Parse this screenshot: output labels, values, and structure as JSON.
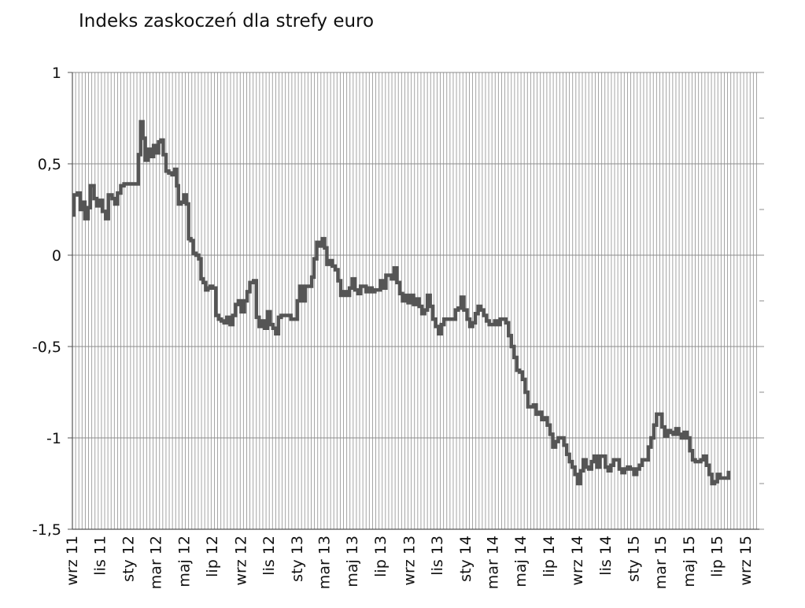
{
  "chart_data": {
    "type": "line",
    "title": "Indeks zaskoczeń dla strefy euro",
    "xlabel": "",
    "ylabel": "",
    "ylim": [
      -1.5,
      1
    ],
    "yticks": [
      "1",
      "0,5",
      "0",
      "-0,5",
      "-1",
      "-1,5"
    ],
    "ytick_values": [
      1,
      0.5,
      0,
      -0.5,
      -1,
      -1.5
    ],
    "xlim": [
      "2011-09-01",
      "2015-09-30"
    ],
    "xticks": [
      {
        "label": "wrz 11",
        "date": "2011-09-01"
      },
      {
        "label": "lis 11",
        "date": "2011-11-01"
      },
      {
        "label": "sty 12",
        "date": "2012-01-01"
      },
      {
        "label": "mar 12",
        "date": "2012-03-01"
      },
      {
        "label": "maj 12",
        "date": "2012-05-01"
      },
      {
        "label": "lip 12",
        "date": "2012-07-01"
      },
      {
        "label": "wrz 12",
        "date": "2012-09-01"
      },
      {
        "label": "lis 12",
        "date": "2012-11-01"
      },
      {
        "label": "sty 13",
        "date": "2013-01-01"
      },
      {
        "label": "mar 13",
        "date": "2013-03-01"
      },
      {
        "label": "maj 13",
        "date": "2013-05-01"
      },
      {
        "label": "lip 13",
        "date": "2013-07-01"
      },
      {
        "label": "wrz 13",
        "date": "2013-09-01"
      },
      {
        "label": "lis 13",
        "date": "2013-11-01"
      },
      {
        "label": "sty 14",
        "date": "2014-01-01"
      },
      {
        "label": "mar 14",
        "date": "2014-03-01"
      },
      {
        "label": "maj 14",
        "date": "2014-05-01"
      },
      {
        "label": "lip 14",
        "date": "2014-07-01"
      },
      {
        "label": "wrz 14",
        "date": "2014-09-01"
      },
      {
        "label": "lis 14",
        "date": "2014-11-01"
      },
      {
        "label": "sty 15",
        "date": "2015-01-01"
      },
      {
        "label": "mar 15",
        "date": "2015-03-01"
      },
      {
        "label": "maj 15",
        "date": "2015-05-01"
      },
      {
        "label": "lip 15",
        "date": "2015-07-01"
      },
      {
        "label": "wrz 15",
        "date": "2015-09-01"
      }
    ],
    "grid": {
      "horizontal": true,
      "vertical": true
    },
    "legend": "none",
    "series": [
      {
        "color": "#555555",
        "points": [
          [
            "2011-09-01",
            0.22
          ],
          [
            "2011-09-04",
            0.33
          ],
          [
            "2011-09-12",
            0.34
          ],
          [
            "2011-09-18",
            0.25
          ],
          [
            "2011-09-24",
            0.29
          ],
          [
            "2011-09-28",
            0.2
          ],
          [
            "2011-10-05",
            0.26
          ],
          [
            "2011-10-10",
            0.38
          ],
          [
            "2011-10-18",
            0.31
          ],
          [
            "2011-10-24",
            0.27
          ],
          [
            "2011-10-30",
            0.3
          ],
          [
            "2011-11-05",
            0.24
          ],
          [
            "2011-11-12",
            0.2
          ],
          [
            "2011-11-18",
            0.33
          ],
          [
            "2011-11-26",
            0.31
          ],
          [
            "2011-12-02",
            0.28
          ],
          [
            "2011-12-08",
            0.34
          ],
          [
            "2011-12-15",
            0.38
          ],
          [
            "2011-12-22",
            0.39
          ],
          [
            "2012-01-05",
            0.39
          ],
          [
            "2012-01-15",
            0.39
          ],
          [
            "2012-01-22",
            0.55
          ],
          [
            "2012-01-27",
            0.73
          ],
          [
            "2012-02-01",
            0.64
          ],
          [
            "2012-02-06",
            0.52
          ],
          [
            "2012-02-12",
            0.58
          ],
          [
            "2012-02-18",
            0.54
          ],
          [
            "2012-02-24",
            0.6
          ],
          [
            "2012-03-01",
            0.56
          ],
          [
            "2012-03-06",
            0.62
          ],
          [
            "2012-03-11",
            0.63
          ],
          [
            "2012-03-16",
            0.55
          ],
          [
            "2012-03-22",
            0.46
          ],
          [
            "2012-03-28",
            0.45
          ],
          [
            "2012-04-04",
            0.44
          ],
          [
            "2012-04-10",
            0.47
          ],
          [
            "2012-04-14",
            0.38
          ],
          [
            "2012-04-18",
            0.28
          ],
          [
            "2012-04-24",
            0.29
          ],
          [
            "2012-04-30",
            0.33
          ],
          [
            "2012-05-05",
            0.28
          ],
          [
            "2012-05-10",
            0.09
          ],
          [
            "2012-05-15",
            0.08
          ],
          [
            "2012-05-20",
            0.01
          ],
          [
            "2012-05-26",
            0.0
          ],
          [
            "2012-06-01",
            -0.02
          ],
          [
            "2012-06-06",
            -0.13
          ],
          [
            "2012-06-11",
            -0.15
          ],
          [
            "2012-06-16",
            -0.19
          ],
          [
            "2012-06-21",
            -0.18
          ],
          [
            "2012-06-26",
            -0.17
          ],
          [
            "2012-07-01",
            -0.18
          ],
          [
            "2012-07-08",
            -0.33
          ],
          [
            "2012-07-14",
            -0.35
          ],
          [
            "2012-07-20",
            -0.36
          ],
          [
            "2012-07-26",
            -0.37
          ],
          [
            "2012-08-01",
            -0.34
          ],
          [
            "2012-08-08",
            -0.38
          ],
          [
            "2012-08-14",
            -0.33
          ],
          [
            "2012-08-20",
            -0.27
          ],
          [
            "2012-08-26",
            -0.25
          ],
          [
            "2012-09-01",
            -0.31
          ],
          [
            "2012-09-08",
            -0.25
          ],
          [
            "2012-09-14",
            -0.2
          ],
          [
            "2012-09-20",
            -0.15
          ],
          [
            "2012-09-28",
            -0.14
          ],
          [
            "2012-10-04",
            -0.34
          ],
          [
            "2012-10-10",
            -0.39
          ],
          [
            "2012-10-16",
            -0.36
          ],
          [
            "2012-10-22",
            -0.4
          ],
          [
            "2012-10-28",
            -0.31
          ],
          [
            "2012-11-03",
            -0.38
          ],
          [
            "2012-11-09",
            -0.4
          ],
          [
            "2012-11-15",
            -0.43
          ],
          [
            "2012-11-21",
            -0.34
          ],
          [
            "2012-11-27",
            -0.33
          ],
          [
            "2012-12-05",
            -0.33
          ],
          [
            "2012-12-12",
            -0.33
          ],
          [
            "2012-12-18",
            -0.35
          ],
          [
            "2012-12-24",
            -0.35
          ],
          [
            "2013-01-01",
            -0.25
          ],
          [
            "2013-01-06",
            -0.17
          ],
          [
            "2013-01-12",
            -0.25
          ],
          [
            "2013-01-18",
            -0.17
          ],
          [
            "2013-01-25",
            -0.17
          ],
          [
            "2013-02-01",
            -0.12
          ],
          [
            "2013-02-06",
            -0.02
          ],
          [
            "2013-02-12",
            0.07
          ],
          [
            "2013-02-18",
            0.05
          ],
          [
            "2013-02-24",
            0.09
          ],
          [
            "2013-03-01",
            0.04
          ],
          [
            "2013-03-06",
            -0.05
          ],
          [
            "2013-03-12",
            -0.03
          ],
          [
            "2013-03-18",
            -0.06
          ],
          [
            "2013-03-24",
            -0.08
          ],
          [
            "2013-03-30",
            -0.14
          ],
          [
            "2013-04-05",
            -0.22
          ],
          [
            "2013-04-12",
            -0.2
          ],
          [
            "2013-04-18",
            -0.22
          ],
          [
            "2013-04-24",
            -0.18
          ],
          [
            "2013-04-30",
            -0.13
          ],
          [
            "2013-05-06",
            -0.19
          ],
          [
            "2013-05-12",
            -0.21
          ],
          [
            "2013-05-18",
            -0.17
          ],
          [
            "2013-05-24",
            -0.17
          ],
          [
            "2013-05-30",
            -0.2
          ],
          [
            "2013-06-05",
            -0.18
          ],
          [
            "2013-06-12",
            -0.2
          ],
          [
            "2013-06-18",
            -0.19
          ],
          [
            "2013-06-24",
            -0.19
          ],
          [
            "2013-06-30",
            -0.14
          ],
          [
            "2013-07-06",
            -0.18
          ],
          [
            "2013-07-12",
            -0.11
          ],
          [
            "2013-07-18",
            -0.11
          ],
          [
            "2013-07-24",
            -0.13
          ],
          [
            "2013-07-30",
            -0.07
          ],
          [
            "2013-08-05",
            -0.15
          ],
          [
            "2013-08-11",
            -0.21
          ],
          [
            "2013-08-17",
            -0.25
          ],
          [
            "2013-08-23",
            -0.22
          ],
          [
            "2013-08-29",
            -0.26
          ],
          [
            "2013-09-04",
            -0.22
          ],
          [
            "2013-09-10",
            -0.27
          ],
          [
            "2013-09-16",
            -0.24
          ],
          [
            "2013-09-22",
            -0.28
          ],
          [
            "2013-09-28",
            -0.32
          ],
          [
            "2013-10-04",
            -0.3
          ],
          [
            "2013-10-10",
            -0.22
          ],
          [
            "2013-10-16",
            -0.28
          ],
          [
            "2013-10-22",
            -0.35
          ],
          [
            "2013-10-28",
            -0.39
          ],
          [
            "2013-11-03",
            -0.43
          ],
          [
            "2013-11-09",
            -0.38
          ],
          [
            "2013-11-15",
            -0.35
          ],
          [
            "2013-11-21",
            -0.35
          ],
          [
            "2013-11-27",
            -0.35
          ],
          [
            "2013-12-04",
            -0.35
          ],
          [
            "2013-12-10",
            -0.3
          ],
          [
            "2013-12-16",
            -0.29
          ],
          [
            "2013-12-22",
            -0.23
          ],
          [
            "2013-12-28",
            -0.3
          ],
          [
            "2014-01-04",
            -0.35
          ],
          [
            "2014-01-10",
            -0.39
          ],
          [
            "2014-01-16",
            -0.37
          ],
          [
            "2014-01-22",
            -0.32
          ],
          [
            "2014-01-28",
            -0.28
          ],
          [
            "2014-02-03",
            -0.3
          ],
          [
            "2014-02-09",
            -0.33
          ],
          [
            "2014-02-15",
            -0.36
          ],
          [
            "2014-02-21",
            -0.38
          ],
          [
            "2014-02-27",
            -0.38
          ],
          [
            "2014-03-05",
            -0.36
          ],
          [
            "2014-03-11",
            -0.38
          ],
          [
            "2014-03-17",
            -0.35
          ],
          [
            "2014-03-23",
            -0.35
          ],
          [
            "2014-03-29",
            -0.37
          ],
          [
            "2014-04-04",
            -0.44
          ],
          [
            "2014-04-10",
            -0.5
          ],
          [
            "2014-04-16",
            -0.56
          ],
          [
            "2014-04-22",
            -0.63
          ],
          [
            "2014-04-28",
            -0.64
          ],
          [
            "2014-05-04",
            -0.68
          ],
          [
            "2014-05-10",
            -0.75
          ],
          [
            "2014-05-16",
            -0.83
          ],
          [
            "2014-05-22",
            -0.83
          ],
          [
            "2014-05-28",
            -0.82
          ],
          [
            "2014-06-03",
            -0.87
          ],
          [
            "2014-06-09",
            -0.86
          ],
          [
            "2014-06-15",
            -0.9
          ],
          [
            "2014-06-21",
            -0.89
          ],
          [
            "2014-06-27",
            -0.93
          ],
          [
            "2014-07-03",
            -0.98
          ],
          [
            "2014-07-09",
            -1.05
          ],
          [
            "2014-07-15",
            -1.02
          ],
          [
            "2014-07-21",
            -1.0
          ],
          [
            "2014-07-27",
            -1.0
          ],
          [
            "2014-08-02",
            -1.04
          ],
          [
            "2014-08-08",
            -1.09
          ],
          [
            "2014-08-14",
            -1.13
          ],
          [
            "2014-08-20",
            -1.16
          ],
          [
            "2014-08-26",
            -1.2
          ],
          [
            "2014-09-01",
            -1.25
          ],
          [
            "2014-09-07",
            -1.18
          ],
          [
            "2014-09-13",
            -1.12
          ],
          [
            "2014-09-19",
            -1.16
          ],
          [
            "2014-09-25",
            -1.17
          ],
          [
            "2014-10-01",
            -1.13
          ],
          [
            "2014-10-07",
            -1.1
          ],
          [
            "2014-10-13",
            -1.16
          ],
          [
            "2014-10-19",
            -1.1
          ],
          [
            "2014-10-25",
            -1.1
          ],
          [
            "2014-10-31",
            -1.16
          ],
          [
            "2014-11-06",
            -1.18
          ],
          [
            "2014-11-12",
            -1.15
          ],
          [
            "2014-11-18",
            -1.12
          ],
          [
            "2014-11-24",
            -1.12
          ],
          [
            "2014-11-30",
            -1.17
          ],
          [
            "2014-12-06",
            -1.19
          ],
          [
            "2014-12-12",
            -1.17
          ],
          [
            "2014-12-18",
            -1.16
          ],
          [
            "2014-12-24",
            -1.17
          ],
          [
            "2015-01-01",
            -1.2
          ],
          [
            "2015-01-07",
            -1.17
          ],
          [
            "2015-01-13",
            -1.15
          ],
          [
            "2015-01-19",
            -1.12
          ],
          [
            "2015-01-25",
            -1.12
          ],
          [
            "2015-02-01",
            -1.05
          ],
          [
            "2015-02-07",
            -1.0
          ],
          [
            "2015-02-13",
            -0.93
          ],
          [
            "2015-02-19",
            -0.87
          ],
          [
            "2015-02-25",
            -0.87
          ],
          [
            "2015-03-03",
            -0.94
          ],
          [
            "2015-03-09",
            -0.99
          ],
          [
            "2015-03-15",
            -0.96
          ],
          [
            "2015-03-21",
            -0.97
          ],
          [
            "2015-03-27",
            -0.98
          ],
          [
            "2015-04-02",
            -0.95
          ],
          [
            "2015-04-08",
            -0.98
          ],
          [
            "2015-04-14",
            -1.0
          ],
          [
            "2015-04-20",
            -0.97
          ],
          [
            "2015-04-26",
            -1.0
          ],
          [
            "2015-05-02",
            -1.07
          ],
          [
            "2015-05-08",
            -1.12
          ],
          [
            "2015-05-14",
            -1.13
          ],
          [
            "2015-05-20",
            -1.13
          ],
          [
            "2015-05-26",
            -1.12
          ],
          [
            "2015-06-01",
            -1.1
          ],
          [
            "2015-06-07",
            -1.15
          ],
          [
            "2015-06-13",
            -1.2
          ],
          [
            "2015-06-19",
            -1.25
          ],
          [
            "2015-06-25",
            -1.24
          ],
          [
            "2015-07-01",
            -1.2
          ],
          [
            "2015-07-07",
            -1.22
          ],
          [
            "2015-07-13",
            -1.22
          ],
          [
            "2015-07-19",
            -1.22
          ],
          [
            "2015-07-25",
            -1.18
          ]
        ]
      }
    ]
  }
}
